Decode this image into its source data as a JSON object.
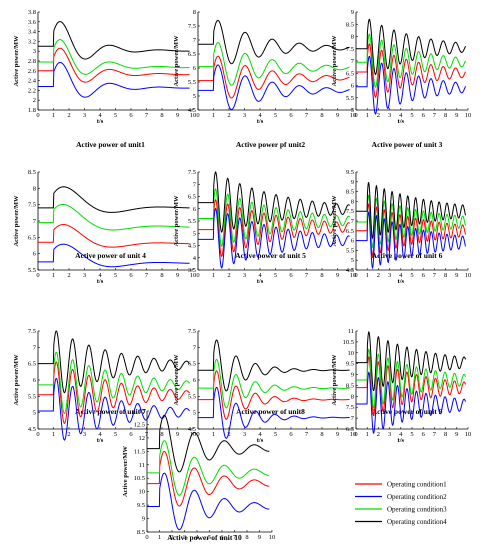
{
  "chart_data": [
    {
      "type": "line",
      "caption": "Active power of unit1",
      "ylabel": "Active power/MW",
      "xlabel": "t/s",
      "xlim": [
        0,
        10
      ],
      "ylim": [
        1.8,
        3.8
      ],
      "yticks": [
        "1.8",
        "2",
        "2.2",
        "2.4",
        "2.6",
        "2.8",
        "3",
        "3.2",
        "3.4",
        "3.6",
        "3.8"
      ],
      "xticks": [
        "0",
        "1",
        "2",
        "3",
        "4",
        "5",
        "6",
        "7",
        "8",
        "9",
        "10"
      ],
      "series": [
        {
          "base": 2.6,
          "final": 2.52,
          "amp": 0.62,
          "period": 3.2,
          "decay": 0.55,
          "t_end": 9.8
        },
        {
          "base": 2.78,
          "final": 2.66,
          "amp": 0.62,
          "period": 3.2,
          "decay": 0.55,
          "t_end": 9.8
        },
        {
          "base": 2.28,
          "final": 2.25,
          "amp": 0.65,
          "period": 3.2,
          "decay": 0.55,
          "t_end": 9.8
        },
        {
          "base": 3.1,
          "final": 3.0,
          "amp": 0.68,
          "period": 3.2,
          "decay": 0.55,
          "t_end": 9.8
        }
      ]
    },
    {
      "type": "line",
      "caption": "Active power pf unit2",
      "ylabel": "Active power/MW",
      "xlabel": "t/s",
      "xlim": [
        0,
        10
      ],
      "ylim": [
        4.5,
        8
      ],
      "yticks": [
        "4.5",
        "5",
        "5.5",
        "6",
        "6.5",
        "7",
        "7.5",
        "8"
      ],
      "xticks": [
        "0",
        "1",
        "2",
        "3",
        "4",
        "5",
        "6",
        "7",
        "8",
        "9",
        "10"
      ],
      "series": [
        {
          "base": 5.55,
          "final": 5.65,
          "amp": 0.95,
          "period": 1.75,
          "decay": 0.32,
          "t_end": 9.8
        },
        {
          "base": 6.05,
          "final": 6.0,
          "amp": 0.95,
          "period": 1.75,
          "decay": 0.32,
          "t_end": 9.8
        },
        {
          "base": 5.2,
          "final": 5.2,
          "amp": 1.0,
          "period": 1.75,
          "decay": 0.32,
          "t_end": 9.8
        },
        {
          "base": 6.85,
          "final": 6.7,
          "amp": 0.95,
          "period": 1.75,
          "decay": 0.32,
          "t_end": 9.8
        }
      ]
    },
    {
      "type": "line",
      "caption": "Active power of unit 3",
      "ylabel": "Active power/MW",
      "xlabel": "t/s",
      "xlim": [
        0,
        10
      ],
      "ylim": [
        5,
        9
      ],
      "yticks": [
        "5",
        "5.5",
        "6",
        "6.5",
        "7",
        "7.5",
        "8",
        "8.5",
        "9"
      ],
      "xticks": [
        "0",
        "1",
        "2",
        "3",
        "4",
        "5",
        "6",
        "7",
        "8",
        "9",
        "10"
      ],
      "series": [
        {
          "base": 6.55,
          "final": 6.5,
          "amp": 1.2,
          "period": 1.1,
          "decay": 0.22,
          "t_end": 9.8
        },
        {
          "base": 6.95,
          "final": 6.95,
          "amp": 1.2,
          "period": 1.1,
          "decay": 0.22,
          "t_end": 9.8
        },
        {
          "base": 5.95,
          "final": 5.9,
          "amp": 1.3,
          "period": 1.1,
          "decay": 0.22,
          "t_end": 9.8
        },
        {
          "base": 7.5,
          "final": 7.55,
          "amp": 1.25,
          "period": 1.1,
          "decay": 0.22,
          "t_end": 9.8
        }
      ]
    },
    {
      "type": "line",
      "caption": "Active power of unit 4",
      "ylabel": "Active power/MW",
      "xlabel": "t/s",
      "xlim": [
        0,
        10
      ],
      "ylim": [
        5.5,
        8.5
      ],
      "yticks": [
        "5.5",
        "6",
        "6.5",
        "7",
        "7.5",
        "8",
        "8.5"
      ],
      "xticks": [
        "0",
        "1",
        "2",
        "3",
        "4",
        "5",
        "6",
        "7",
        "8",
        "9",
        "10"
      ],
      "series": [
        {
          "base": 6.35,
          "final": 6.3,
          "amp": 0.85,
          "period": 6.2,
          "decay": 0.5,
          "t_end": 9.8
        },
        {
          "base": 6.95,
          "final": 6.8,
          "amp": 0.9,
          "period": 6.2,
          "decay": 0.5,
          "t_end": 9.8
        },
        {
          "base": 5.75,
          "final": 5.7,
          "amp": 0.85,
          "period": 6.2,
          "decay": 0.5,
          "t_end": 9.8
        },
        {
          "base": 7.4,
          "final": 7.4,
          "amp": 1.0,
          "period": 6.2,
          "decay": 0.5,
          "t_end": 9.8
        }
      ]
    },
    {
      "type": "line",
      "caption": "Active power of unit 5",
      "ylabel": "Active power/MW",
      "xlabel": "t/s",
      "xlim": [
        0,
        10
      ],
      "ylim": [
        3.5,
        7.5
      ],
      "yticks": [
        "3.5",
        "4",
        "4.5",
        "5",
        "5.5",
        "6",
        "6.5",
        "7",
        "7.5"
      ],
      "xticks": [
        "0",
        "1",
        "2",
        "3",
        "4",
        "5",
        "6",
        "7",
        "8",
        "9",
        "10"
      ],
      "series": [
        {
          "base": 5.15,
          "final": 5.25,
          "amp": 1.25,
          "period": 0.78,
          "decay": 0.22,
          "t_end": 9.8
        },
        {
          "base": 5.6,
          "final": 5.5,
          "amp": 1.25,
          "period": 0.78,
          "decay": 0.22,
          "t_end": 9.8
        },
        {
          "base": 4.75,
          "final": 4.7,
          "amp": 1.3,
          "period": 0.78,
          "decay": 0.22,
          "t_end": 9.8
        },
        {
          "base": 6.25,
          "final": 5.95,
          "amp": 1.3,
          "period": 0.78,
          "decay": 0.22,
          "t_end": 9.8
        }
      ]
    },
    {
      "type": "line",
      "caption": "Active power of unit 6",
      "ylabel": "Active power/MW",
      "xlabel": "t/s",
      "xlim": [
        0,
        10
      ],
      "ylim": [
        4.5,
        9.5
      ],
      "yticks": [
        "4.5",
        "5",
        "5.5",
        "6",
        "6.5",
        "7",
        "7.5",
        "8",
        "8.5",
        "9",
        "9.5"
      ],
      "xticks": [
        "0",
        "1",
        "2",
        "3",
        "4",
        "5",
        "6",
        "7",
        "8",
        "9",
        "10"
      ],
      "series": [
        {
          "base": 6.5,
          "final": 6.5,
          "amp": 1.4,
          "period": 0.7,
          "decay": 0.18,
          "t_end": 9.8
        },
        {
          "base": 6.95,
          "final": 6.95,
          "amp": 1.4,
          "period": 0.7,
          "decay": 0.18,
          "t_end": 9.8
        },
        {
          "base": 6.0,
          "final": 5.9,
          "amp": 1.5,
          "period": 0.7,
          "decay": 0.18,
          "t_end": 9.8
        },
        {
          "base": 7.5,
          "final": 7.5,
          "amp": 1.5,
          "period": 0.7,
          "decay": 0.18,
          "t_end": 9.8
        }
      ]
    },
    {
      "type": "line",
      "caption": "Active power of unit 7",
      "ylabel": "Active power/MW",
      "xlabel": "t/s",
      "xlim": [
        0,
        10
      ],
      "ylim": [
        4.5,
        7.5
      ],
      "yticks": [
        "4.5",
        "5",
        "5.5",
        "6",
        "6.5",
        "7",
        "7.5"
      ],
      "xticks": [
        "0",
        "1",
        "2",
        "3",
        "4",
        "5",
        "6",
        "7",
        "8",
        "9",
        "10"
      ],
      "series": [
        {
          "base": 5.55,
          "final": 5.55,
          "amp": 1.05,
          "period": 1.05,
          "decay": 0.25,
          "t_end": 9.8
        },
        {
          "base": 5.85,
          "final": 5.85,
          "amp": 1.05,
          "period": 1.05,
          "decay": 0.25,
          "t_end": 9.8
        },
        {
          "base": 5.05,
          "final": 5.0,
          "amp": 1.05,
          "period": 1.05,
          "decay": 0.25,
          "t_end": 9.8
        },
        {
          "base": 6.5,
          "final": 6.45,
          "amp": 1.05,
          "period": 1.05,
          "decay": 0.25,
          "t_end": 9.8
        }
      ]
    },
    {
      "type": "line",
      "caption": "Active power of unit8",
      "ylabel": "Active power/MW",
      "xlabel": "t/s",
      "xlim": [
        0,
        10
      ],
      "ylim": [
        4.5,
        7.5
      ],
      "yticks": [
        "4.5",
        "5",
        "5.5",
        "6",
        "6.5",
        "7",
        "7.5"
      ],
      "xticks": [
        "0",
        "1",
        "2",
        "3",
        "4",
        "5",
        "6",
        "7",
        "8",
        "9",
        "10"
      ],
      "series": [
        {
          "base": 5.4,
          "final": 5.4,
          "amp": 1.0,
          "period": 1.25,
          "decay": 0.6,
          "t_end": 9.8
        },
        {
          "base": 5.75,
          "final": 5.75,
          "amp": 1.0,
          "period": 1.25,
          "decay": 0.6,
          "t_end": 9.8
        },
        {
          "base": 4.85,
          "final": 4.85,
          "amp": 1.05,
          "period": 1.25,
          "decay": 0.6,
          "t_end": 9.8
        },
        {
          "base": 6.3,
          "final": 6.3,
          "amp": 1.05,
          "period": 1.25,
          "decay": 0.6,
          "t_end": 9.8
        }
      ]
    },
    {
      "type": "line",
      "caption": "Active power of unit 9",
      "ylabel": "Active power/MW",
      "xlabel": "t/s",
      "xlim": [
        0,
        10
      ],
      "ylim": [
        6.5,
        11
      ],
      "yticks": [
        "6.5",
        "7",
        "7.5",
        "8",
        "8.5",
        "9",
        "9.5",
        "10",
        "10.5",
        "11"
      ],
      "xticks": [
        "0",
        "1",
        "2",
        "3",
        "4",
        "5",
        "6",
        "7",
        "8",
        "9",
        "10"
      ],
      "series": [
        {
          "base": 8.4,
          "final": 8.4,
          "amp": 1.45,
          "period": 0.85,
          "decay": 0.2,
          "t_end": 9.8
        },
        {
          "base": 8.75,
          "final": 8.75,
          "amp": 1.45,
          "period": 0.85,
          "decay": 0.2,
          "t_end": 9.8
        },
        {
          "base": 7.65,
          "final": 7.6,
          "amp": 1.5,
          "period": 0.85,
          "decay": 0.2,
          "t_end": 9.8
        },
        {
          "base": 9.55,
          "final": 9.55,
          "amp": 1.45,
          "period": 0.85,
          "decay": 0.2,
          "t_end": 9.8
        }
      ]
    },
    {
      "type": "line",
      "caption": "Active power of unit 10",
      "ylabel": "Active power/MW",
      "xlabel": "",
      "xlim": [
        0,
        10
      ],
      "ylim": [
        8.5,
        13
      ],
      "yticks": [
        "8.5",
        "9",
        "9.5",
        "10",
        "10.5",
        "11",
        "11.5",
        "12",
        "12.5",
        "13"
      ],
      "xticks": [
        "0",
        "1",
        "2",
        "3",
        "4",
        "5",
        "6",
        "7",
        "8",
        "9",
        "10"
      ],
      "series": [
        {
          "base": 10.3,
          "final": 10.3,
          "amp": 1.35,
          "period": 2.4,
          "decay": 0.3,
          "t_end": 9.8
        },
        {
          "base": 10.7,
          "final": 10.7,
          "amp": 1.35,
          "period": 2.4,
          "decay": 0.3,
          "t_end": 9.8
        },
        {
          "base": 9.45,
          "final": 9.45,
          "amp": 1.4,
          "period": 2.4,
          "decay": 0.3,
          "t_end": 9.8
        },
        {
          "base": 11.6,
          "final": 11.6,
          "amp": 1.4,
          "period": 2.4,
          "decay": 0.3,
          "t_end": 9.8
        }
      ]
    }
  ],
  "legend": {
    "placement": "bottom-right",
    "entries": [
      {
        "label": "Operating condition1",
        "color": "#ff0000"
      },
      {
        "label": "Operating condition2",
        "color": "#0000ff"
      },
      {
        "label": "Operating condition3",
        "color": "#00dd00"
      },
      {
        "label": "Operating condition4",
        "color": "#000000"
      }
    ]
  },
  "series_colors": [
    "#ff0000",
    "#00dd00",
    "#0000ff",
    "#000000"
  ]
}
